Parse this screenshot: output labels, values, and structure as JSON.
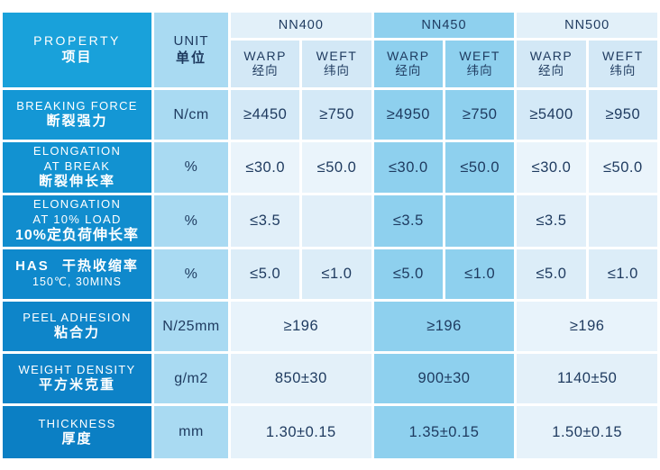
{
  "colors": {
    "left_column_top": "#19a1da",
    "left_column_bottom": "#0b7fc4",
    "unit_column": "#a9daf2",
    "highlight_column_nn450": "#8ed0ee",
    "light_cell": "#e2f0f9",
    "text_dark": "#1e3a5f",
    "text_light": "#ffffff"
  },
  "header": {
    "property": {
      "en": "PROPERTY",
      "zh": "项目"
    },
    "unit": {
      "en": "UNIT",
      "zh": "单位"
    },
    "groups": [
      "NN400",
      "NN450",
      "NN500"
    ],
    "warp": {
      "en": "WARP",
      "zh": "经向"
    },
    "weft": {
      "en": "WEFT",
      "zh": "纬向"
    }
  },
  "rows": [
    {
      "line1": "BREAKING FORCE",
      "line2": "断裂强力",
      "unit": "N/cm",
      "values": [
        "≥4450",
        "≥750",
        "≥4950",
        "≥750",
        "≥5400",
        "≥950"
      ]
    },
    {
      "line1": "ELONGATION",
      "line2": "AT BREAK",
      "line3": "断裂伸长率",
      "unit": "%",
      "values": [
        "≤30.0",
        "≤50.0",
        "≤30.0",
        "≤50.0",
        "≤30.0",
        "≤50.0"
      ]
    },
    {
      "line1": "ELONGATION",
      "line2": "AT 10% LOAD",
      "line3": "10%定负荷伸长率",
      "unit": "%",
      "values": [
        "≤3.5",
        "",
        "≤3.5",
        "",
        "≤3.5",
        ""
      ]
    },
    {
      "line1": "HAS 干热收缩率",
      "line2": "150℃, 30MINS",
      "unit": "%",
      "values": [
        "≤5.0",
        "≤1.0",
        "≤5.0",
        "≤1.0",
        "≤5.0",
        "≤1.0"
      ]
    },
    {
      "line1": "PEEL ADHESION",
      "line2": "粘合力",
      "unit": "N/25mm",
      "values": [
        "≥196",
        "≥196",
        "≥196"
      ]
    },
    {
      "line1": "WEIGHT DENSITY",
      "line2": "平方米克重",
      "unit": "g/m2",
      "values": [
        "850±30",
        "900±30",
        "1140±50"
      ]
    },
    {
      "line1": "THICKNESS",
      "line2": "厚度",
      "unit": "mm",
      "values": [
        "1.30±0.15",
        "1.35±0.15",
        "1.50±0.15"
      ]
    }
  ],
  "chart_data": {
    "type": "table",
    "title": "Fabric specification table NN400 / NN450 / NN500",
    "columns": [
      "PROPERTY 项目",
      "UNIT 单位",
      "NN400 WARP 经向",
      "NN400 WEFT 纬向",
      "NN450 WARP 经向",
      "NN450 WEFT 纬向",
      "NN500 WARP 经向",
      "NN500 WEFT 纬向"
    ],
    "rows": [
      [
        "BREAKING FORCE 断裂强力",
        "N/cm",
        "≥4450",
        "≥750",
        "≥4950",
        "≥750",
        "≥5400",
        "≥950"
      ],
      [
        "ELONGATION AT BREAK 断裂伸长率",
        "%",
        "≤30.0",
        "≤50.0",
        "≤30.0",
        "≤50.0",
        "≤30.0",
        "≤50.0"
      ],
      [
        "ELONGATION AT 10% LOAD 10%定负荷伸长率",
        "%",
        "≤3.5",
        "",
        "≤3.5",
        "",
        "≤3.5",
        ""
      ],
      [
        "HAS 干热收缩率 150℃, 30MINS",
        "%",
        "≤5.0",
        "≤1.0",
        "≤5.0",
        "≤1.0",
        "≤5.0",
        "≤1.0"
      ],
      [
        "PEEL ADHESION 粘合力",
        "N/25mm",
        "≥196",
        "≥196",
        "≥196",
        "≥196",
        "≥196",
        "≥196"
      ],
      [
        "WEIGHT DENSITY 平方米克重",
        "g/m2",
        "850±30",
        "850±30",
        "900±30",
        "900±30",
        "1140±50",
        "1140±50"
      ],
      [
        "THICKNESS 厚度",
        "mm",
        "1.30±0.15",
        "1.30±0.15",
        "1.35±0.15",
        "1.35±0.15",
        "1.50±0.15",
        "1.50±0.15"
      ]
    ],
    "layout": {
      "merged_rows": [
        "PEEL ADHESION",
        "WEIGHT DENSITY",
        "THICKNESS"
      ],
      "highlighted_group": "NN450"
    }
  }
}
